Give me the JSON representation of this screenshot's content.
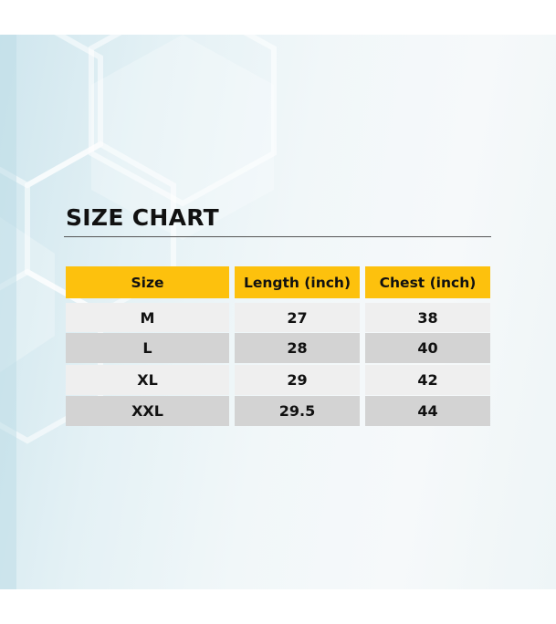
{
  "title": "SIZE CHART",
  "colors": {
    "header": "#fdc10d",
    "row_light": "#efefef",
    "row_dark": "#d3d3d3"
  },
  "table": {
    "headers": [
      "Size",
      "Length (inch)",
      "Chest (inch)"
    ],
    "rows": [
      [
        "M",
        "27",
        "38"
      ],
      [
        "L",
        "28",
        "40"
      ],
      [
        "XL",
        "29",
        "42"
      ],
      [
        "XXL",
        "29.5",
        "44"
      ]
    ]
  }
}
